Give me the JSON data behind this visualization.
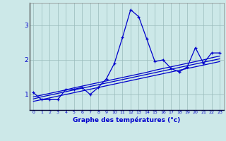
{
  "x": [
    0,
    1,
    2,
    3,
    4,
    5,
    6,
    7,
    8,
    9,
    10,
    11,
    12,
    13,
    14,
    15,
    16,
    17,
    18,
    19,
    20,
    21,
    22,
    23
  ],
  "y_main": [
    1.05,
    0.85,
    0.85,
    0.85,
    1.15,
    1.15,
    1.2,
    1.0,
    1.2,
    1.45,
    1.9,
    2.65,
    3.45,
    3.25,
    2.6,
    1.95,
    2.0,
    1.75,
    1.65,
    1.8,
    2.35,
    1.9,
    2.2,
    2.2
  ],
  "y_line1": [
    0.8,
    0.85,
    0.9,
    0.95,
    1.0,
    1.05,
    1.1,
    1.15,
    1.2,
    1.25,
    1.3,
    1.35,
    1.4,
    1.45,
    1.5,
    1.55,
    1.6,
    1.65,
    1.7,
    1.75,
    1.8,
    1.85,
    1.9,
    1.95
  ],
  "y_line2": [
    0.87,
    0.93,
    0.98,
    1.03,
    1.08,
    1.13,
    1.18,
    1.23,
    1.28,
    1.33,
    1.38,
    1.43,
    1.48,
    1.53,
    1.58,
    1.63,
    1.68,
    1.73,
    1.78,
    1.83,
    1.88,
    1.93,
    1.98,
    2.03
  ],
  "y_line3": [
    0.93,
    0.98,
    1.03,
    1.08,
    1.13,
    1.19,
    1.24,
    1.29,
    1.34,
    1.39,
    1.44,
    1.49,
    1.54,
    1.59,
    1.64,
    1.7,
    1.75,
    1.8,
    1.85,
    1.9,
    1.95,
    2.0,
    2.06,
    2.11
  ],
  "line_color": "#0000cc",
  "bg_color": "#cce8e8",
  "grid_color": "#99bbbb",
  "xlabel": "Graphe des températures (°c)",
  "yticks": [
    1,
    2,
    3
  ],
  "xticks": [
    0,
    1,
    2,
    3,
    4,
    5,
    6,
    7,
    8,
    9,
    10,
    11,
    12,
    13,
    14,
    15,
    16,
    17,
    18,
    19,
    20,
    21,
    22,
    23
  ],
  "xlim": [
    -0.5,
    23.5
  ],
  "ylim": [
    0.55,
    3.65
  ]
}
